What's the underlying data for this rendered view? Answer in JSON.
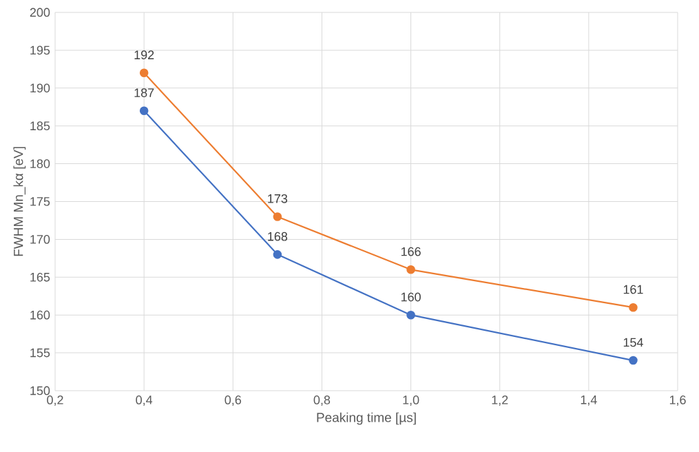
{
  "chart_data": {
    "type": "line",
    "xlabel": "Peaking time [µs]",
    "ylabel": "FWHM Mn_kα [eV]",
    "x": [
      0.4,
      0.7,
      1.0,
      1.5
    ],
    "series": [
      {
        "color": "#4472c4",
        "values": [
          187,
          168,
          160,
          154
        ]
      },
      {
        "color": "#ed7d31",
        "values": [
          192,
          173,
          166,
          161
        ]
      }
    ],
    "xlim": [
      0.2,
      1.6
    ],
    "xticks": [
      {
        "value": 0.2,
        "label": "0,2"
      },
      {
        "value": 0.4,
        "label": "0,4"
      },
      {
        "value": 0.6,
        "label": "0,6"
      },
      {
        "value": 0.8,
        "label": "0,8"
      },
      {
        "value": 1.0,
        "label": "1,0"
      },
      {
        "value": 1.2,
        "label": "1,2"
      },
      {
        "value": 1.4,
        "label": "1,4"
      },
      {
        "value": 1.6,
        "label": "1,6"
      }
    ],
    "ylim": [
      150,
      200
    ],
    "yticks": [
      150,
      155,
      160,
      165,
      170,
      175,
      180,
      185,
      190,
      195,
      200
    ],
    "grid": true,
    "marker": "circle",
    "line_style": "solid",
    "data_labels": true
  }
}
